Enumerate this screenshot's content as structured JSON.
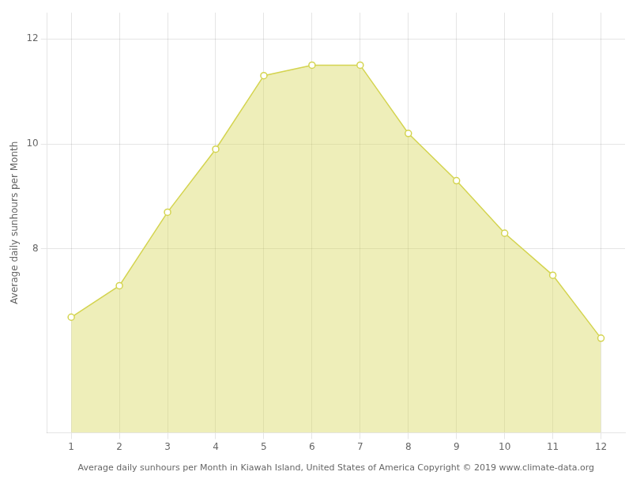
{
  "chart_data": {
    "type": "area",
    "xlabel": "Average daily sunhours per Month in Kiawah Island, United States of America Copyright © 2019 www.climate-data.org",
    "ylabel": "Average daily sunhours per Month",
    "x": [
      1,
      2,
      3,
      4,
      5,
      6,
      7,
      8,
      9,
      10,
      11,
      12
    ],
    "values": [
      6.7,
      7.3,
      8.7,
      9.9,
      11.3,
      11.5,
      11.5,
      10.2,
      9.3,
      8.3,
      7.5,
      6.3
    ],
    "color": "#D4D450",
    "marker": "circle",
    "xlim": [
      0.5,
      12.5
    ],
    "xticks": [
      1,
      2,
      3,
      4,
      5,
      6,
      7,
      8,
      9,
      10,
      11,
      12
    ],
    "ylim": [
      4.5,
      12.5
    ],
    "yticks": [
      8,
      10,
      12
    ],
    "grid": true
  }
}
